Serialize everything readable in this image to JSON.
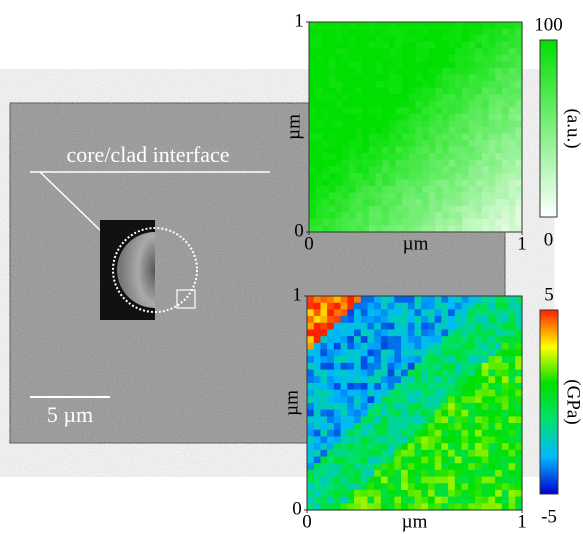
{
  "sem_image": {
    "annotation": "core/clad interface",
    "scale_bar": "5 µm"
  },
  "map_intensity": {
    "x_label": "µm",
    "y_label": "µm",
    "xticks": [
      0,
      1
    ],
    "yticks": [
      0,
      1
    ],
    "colorbar": {
      "label": "(a.u.)",
      "ticks": [
        0,
        100
      ],
      "colors": [
        "#ffffff",
        "#00e000"
      ]
    }
  },
  "map_stress": {
    "x_label": "µm",
    "y_label": "µm",
    "xticks": [
      0,
      1
    ],
    "yticks": [
      0,
      1
    ],
    "colorbar": {
      "label": "(GPa)",
      "ticks": [
        -5,
        5
      ],
      "colors": [
        "#0000d0",
        "#00b8ff",
        "#00e070",
        "#00e000",
        "#ffff00",
        "#ff2000"
      ]
    }
  }
}
